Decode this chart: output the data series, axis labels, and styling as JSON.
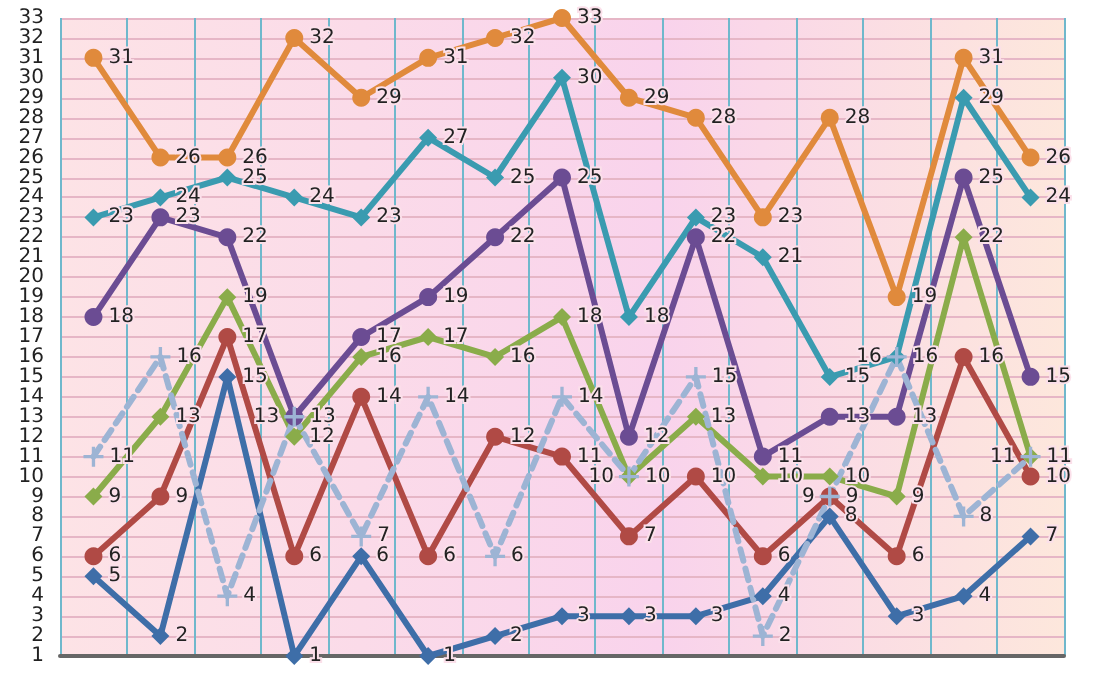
{
  "chart_data": {
    "type": "line",
    "categories": [
      null,
      null,
      null,
      null,
      null,
      null,
      null,
      null,
      null,
      null,
      null,
      null,
      null,
      null,
      null
    ],
    "series": [
      {
        "color": "#e08a3c",
        "marker": "circle",
        "values": [
          31,
          26,
          26,
          32,
          29,
          31,
          32,
          33,
          29,
          28,
          23,
          28,
          19,
          31,
          26
        ]
      },
      {
        "color": "#3a9bb0",
        "marker": "diamond",
        "values": [
          23,
          24,
          25,
          24,
          23,
          27,
          25,
          30,
          18,
          23,
          21,
          15,
          16,
          29,
          24
        ]
      },
      {
        "color": "#6b4c93",
        "marker": "circle",
        "values": [
          18,
          23,
          22,
          13,
          17,
          19,
          22,
          25,
          12,
          22,
          11,
          13,
          13,
          25,
          15
        ]
      },
      {
        "color": "#8aac4a",
        "marker": "diamond",
        "values": [
          9,
          13,
          19,
          12,
          16,
          17,
          16,
          18,
          10,
          13,
          10,
          10,
          9,
          22,
          11
        ]
      },
      {
        "color": "#b04a45",
        "marker": "circle",
        "values": [
          6,
          9,
          17,
          6,
          14,
          6,
          12,
          11,
          7,
          10,
          6,
          9,
          6,
          16,
          10
        ]
      },
      {
        "color": "#3e6ea8",
        "marker": "diamond",
        "values": [
          5,
          2,
          15,
          1,
          6,
          1,
          2,
          3,
          3,
          3,
          4,
          8,
          3,
          4,
          7
        ]
      },
      {
        "color": "#9db4d4",
        "marker": "cross",
        "line_style": "dashed",
        "values": [
          11,
          16,
          4,
          13,
          7,
          14,
          6,
          14,
          10,
          15,
          2,
          9,
          16,
          8,
          11
        ]
      }
    ],
    "ylim": [
      1,
      33
    ],
    "yticks": [
      1,
      2,
      3,
      4,
      5,
      6,
      7,
      8,
      9,
      10,
      11,
      12,
      13,
      14,
      15,
      16,
      17,
      18,
      19,
      20,
      21,
      22,
      23,
      24,
      25,
      26,
      27,
      28,
      29,
      30,
      31,
      32,
      33
    ],
    "grid": true,
    "tick_labels": "y",
    "data_labels": true,
    "line_style": "solid"
  }
}
